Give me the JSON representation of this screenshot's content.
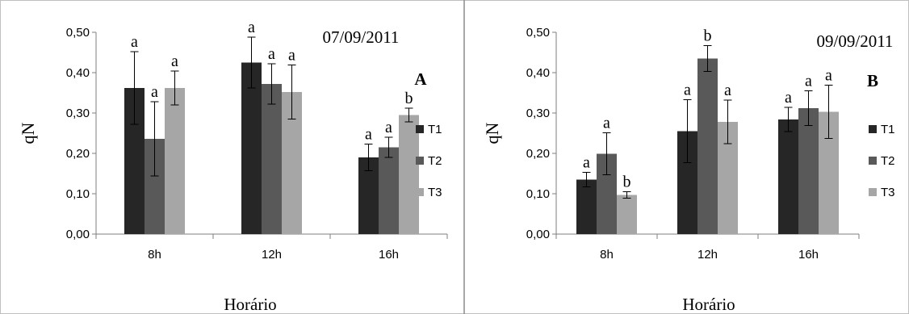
{
  "chart_data": [
    {
      "type": "bar",
      "date": "07/09/2011",
      "panel_label": "A",
      "ylabel": "qN",
      "xlabel": "Horário",
      "ylim": [
        0,
        0.5
      ],
      "yticks": [
        "0,00",
        "0,10",
        "0,20",
        "0,30",
        "0,40",
        "0,50"
      ],
      "categories": [
        "8h",
        "12h",
        "16h"
      ],
      "series": [
        {
          "name": "T1",
          "values": [
            0.362,
            0.425,
            0.19
          ],
          "errors": [
            0.09,
            0.063,
            0.033
          ],
          "letters": [
            "a",
            "a",
            "a"
          ]
        },
        {
          "name": "T2",
          "values": [
            0.236,
            0.372,
            0.215
          ],
          "errors": [
            0.092,
            0.05,
            0.025
          ],
          "letters": [
            "a",
            "a",
            "a"
          ]
        },
        {
          "name": "T3",
          "values": [
            0.362,
            0.352,
            0.295
          ],
          "errors": [
            0.042,
            0.067,
            0.017
          ],
          "letters": [
            "a",
            "a",
            "b"
          ]
        }
      ],
      "legend": "right",
      "grid": false
    },
    {
      "type": "bar",
      "date": "09/09/2011",
      "panel_label": "B",
      "ylabel": "qN",
      "xlabel": "Horário",
      "ylim": [
        0,
        0.5
      ],
      "yticks": [
        "0,00",
        "0,10",
        "0,20",
        "0,30",
        "0,40",
        "0,50"
      ],
      "categories": [
        "8h",
        "12h",
        "16h"
      ],
      "series": [
        {
          "name": "T1",
          "values": [
            0.135,
            0.255,
            0.284
          ],
          "errors": [
            0.018,
            0.078,
            0.03
          ],
          "letters": [
            "a",
            "a",
            "a"
          ]
        },
        {
          "name": "T2",
          "values": [
            0.199,
            0.435,
            0.312
          ],
          "errors": [
            0.052,
            0.032,
            0.043
          ],
          "letters": [
            "a",
            "b",
            "a"
          ]
        },
        {
          "name": "T3",
          "values": [
            0.097,
            0.278,
            0.303
          ],
          "errors": [
            0.008,
            0.054,
            0.066
          ],
          "letters": [
            "b",
            "a",
            "a"
          ]
        }
      ],
      "legend": "right",
      "grid": false
    }
  ],
  "colors": {
    "T1": "#262626",
    "T2": "#595959",
    "T3": "#a6a6a6"
  }
}
